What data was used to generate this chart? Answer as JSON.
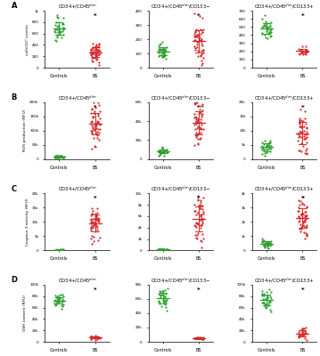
{
  "rows": 4,
  "cols": 3,
  "row_labels": [
    "A",
    "B",
    "C",
    "D"
  ],
  "ylabels": [
    "cells/10⁵ events",
    "ROS production (RFU)",
    "Caspase-3 activity (RFU)",
    "GSH content (RFU)"
  ],
  "ylims": [
    [
      [
        0,
        1000
      ],
      [
        0,
        400
      ],
      [
        0,
        700
      ]
    ],
    [
      [
        0,
        200000
      ],
      [
        0,
        60000
      ],
      [
        0,
        20000
      ]
    ],
    [
      [
        0,
        20000
      ],
      [
        0,
        10000
      ],
      [
        0,
        4000
      ]
    ],
    [
      [
        0,
        100000
      ],
      [
        0,
        80000
      ],
      [
        0,
        100000
      ]
    ]
  ],
  "yticks": [
    [
      [
        0,
        200,
        400,
        600,
        800,
        1000
      ],
      [
        0,
        100,
        200,
        300,
        400
      ],
      [
        0,
        100,
        200,
        300,
        400,
        500,
        600,
        700
      ]
    ],
    [
      [
        0,
        50000,
        100000,
        150000,
        200000
      ],
      [
        0,
        20000,
        40000,
        60000
      ],
      [
        0,
        5000,
        10000,
        15000,
        20000
      ]
    ],
    [
      [
        0,
        5000,
        10000,
        15000,
        20000
      ],
      [
        0,
        2000,
        4000,
        6000,
        8000,
        10000
      ],
      [
        0,
        1000,
        2000,
        3000,
        4000
      ]
    ],
    [
      [
        0,
        20000,
        40000,
        60000,
        80000,
        100000
      ],
      [
        0,
        20000,
        40000,
        60000,
        80000
      ],
      [
        0,
        20000,
        40000,
        60000,
        80000,
        100000
      ]
    ]
  ],
  "green_color": "#2ca02c",
  "red_color": "#d62728",
  "col_title_bases": [
    "CD34+/CD45",
    "CD34+/CD45",
    "CD34+/CD45"
  ],
  "col_title_suffixes": [
    "",
    "/CD133-",
    "/CD133+"
  ]
}
